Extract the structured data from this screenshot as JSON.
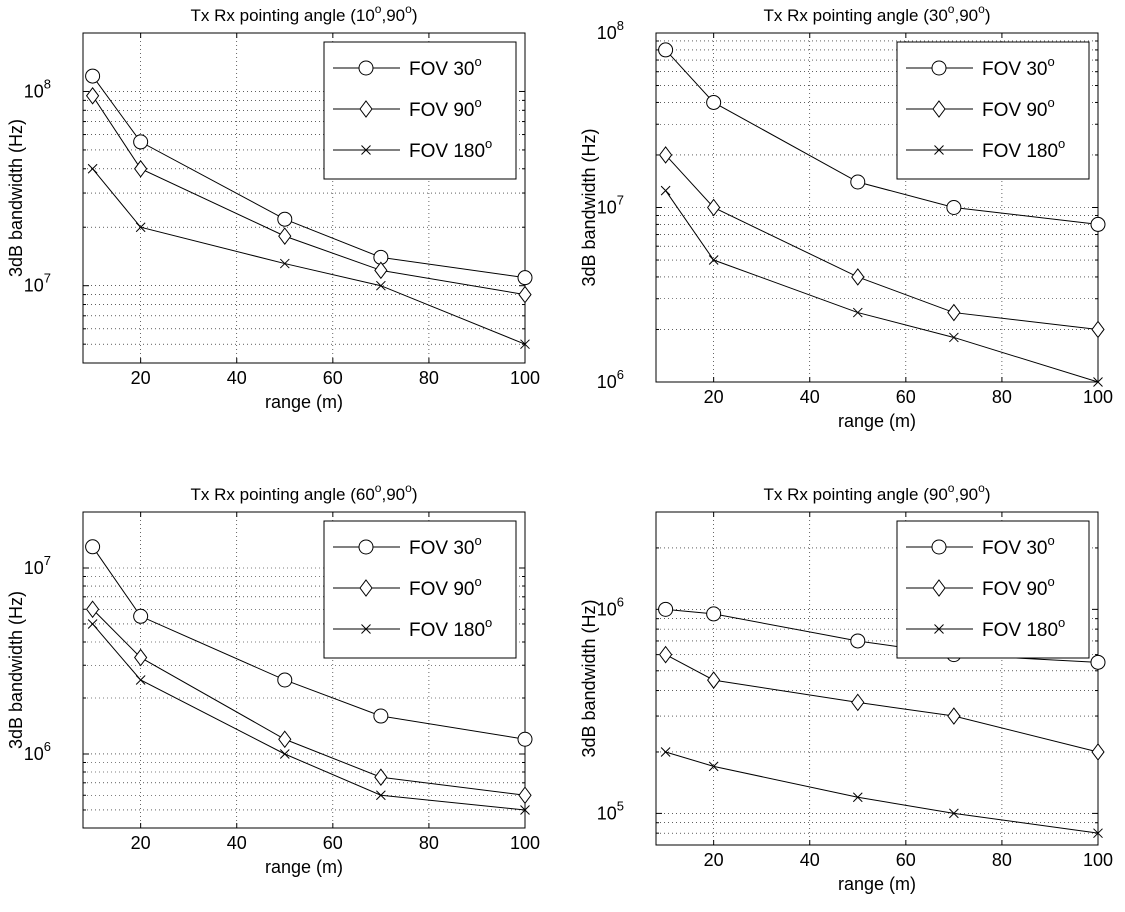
{
  "chart_data": [
    {
      "type": "line",
      "title_main": "Tx Rx pointing angle (10",
      "title_mid": ",90",
      "title_end": ")",
      "title_sup": "o",
      "xlabel": "range (m)",
      "ylabel": "3dB bandwidth (Hz)",
      "yscale": "log",
      "xlim": [
        8,
        100
      ],
      "ylim": [
        4000000,
        200000000
      ],
      "x_ticks": [
        20,
        40,
        60,
        80,
        100
      ],
      "y_ticks": [
        {
          "base": "10",
          "exp": "7",
          "value": 10000000
        },
        {
          "base": "10",
          "exp": "8",
          "value": 100000000
        }
      ],
      "grid": true,
      "legend_position": "top-right",
      "x": [
        10,
        20,
        50,
        70,
        100
      ],
      "series": [
        {
          "name": "FOV 30",
          "name_sup": "o",
          "marker": "circle",
          "values": [
            120000000,
            55000000,
            22000000,
            14000000,
            11000000
          ]
        },
        {
          "name": "FOV 90",
          "name_sup": "o",
          "marker": "diamond",
          "values": [
            95000000,
            40000000,
            18000000,
            12000000,
            9000000
          ]
        },
        {
          "name": "FOV 180",
          "name_sup": "o",
          "marker": "x",
          "values": [
            40000000,
            20000000,
            13000000,
            10000000,
            5000000
          ]
        }
      ]
    },
    {
      "type": "line",
      "title_main": "Tx Rx pointing angle (30",
      "title_mid": ",90",
      "title_end": ")",
      "title_sup": "o",
      "xlabel": "range (m)",
      "ylabel": "3dB bandwidth (Hz)",
      "yscale": "log",
      "xlim": [
        8,
        100
      ],
      "ylim": [
        1000000,
        100000000
      ],
      "x_ticks": [
        20,
        40,
        60,
        80,
        100
      ],
      "y_ticks": [
        {
          "base": "10",
          "exp": "6",
          "value": 1000000
        },
        {
          "base": "10",
          "exp": "7",
          "value": 10000000
        },
        {
          "base": "10",
          "exp": "8",
          "value": 100000000
        }
      ],
      "grid": true,
      "legend_position": "top-right",
      "x": [
        10,
        20,
        50,
        70,
        100
      ],
      "series": [
        {
          "name": "FOV 30",
          "name_sup": "o",
          "marker": "circle",
          "values": [
            80000000,
            40000000,
            14000000,
            10000000,
            8000000
          ]
        },
        {
          "name": "FOV 90",
          "name_sup": "o",
          "marker": "diamond",
          "values": [
            20000000,
            10000000,
            4000000,
            2500000,
            2000000
          ]
        },
        {
          "name": "FOV 180",
          "name_sup": "o",
          "marker": "x",
          "values": [
            12500000,
            5000000,
            2500000,
            1800000,
            1000000
          ]
        }
      ]
    },
    {
      "type": "line",
      "title_main": "Tx Rx pointing angle (60",
      "title_mid": ",90",
      "title_end": ")",
      "title_sup": "o",
      "xlabel": "range (m)",
      "ylabel": "3dB bandwidth (Hz)",
      "yscale": "log",
      "xlim": [
        8,
        100
      ],
      "ylim": [
        400000,
        20000000
      ],
      "x_ticks": [
        20,
        40,
        60,
        80,
        100
      ],
      "y_ticks": [
        {
          "base": "10",
          "exp": "6",
          "value": 1000000
        },
        {
          "base": "10",
          "exp": "7",
          "value": 10000000
        }
      ],
      "grid": true,
      "legend_position": "top-right",
      "x": [
        10,
        20,
        50,
        70,
        100
      ],
      "series": [
        {
          "name": "FOV 30",
          "name_sup": "o",
          "marker": "circle",
          "values": [
            13000000,
            5500000,
            2500000,
            1600000,
            1200000
          ]
        },
        {
          "name": "FOV 90",
          "name_sup": "o",
          "marker": "diamond",
          "values": [
            6000000,
            3300000,
            1200000,
            750000,
            600000
          ]
        },
        {
          "name": "FOV 180",
          "name_sup": "o",
          "marker": "x",
          "values": [
            5000000,
            2500000,
            1000000,
            600000,
            500000
          ]
        }
      ]
    },
    {
      "type": "line",
      "title_main": "Tx Rx pointing angle (90",
      "title_mid": ",90",
      "title_end": ")",
      "title_sup": "o",
      "xlabel": "range (m)",
      "ylabel": "3dB bandwidth (Hz)",
      "yscale": "log",
      "xlim": [
        8,
        100
      ],
      "ylim": [
        70000,
        3000000
      ],
      "x_ticks": [
        20,
        40,
        60,
        80,
        100
      ],
      "y_ticks": [
        {
          "base": "10",
          "exp": "5",
          "value": 100000
        },
        {
          "base": "10",
          "exp": "6",
          "value": 1000000
        }
      ],
      "grid": true,
      "legend_position": "top-right",
      "x": [
        10,
        20,
        50,
        70,
        100
      ],
      "series": [
        {
          "name": "FOV 30",
          "name_sup": "o",
          "marker": "circle",
          "values": [
            1000000,
            950000,
            700000,
            600000,
            550000
          ]
        },
        {
          "name": "FOV 90",
          "name_sup": "o",
          "marker": "diamond",
          "values": [
            600000,
            450000,
            350000,
            300000,
            200000
          ]
        },
        {
          "name": "FOV 180",
          "name_sup": "o",
          "marker": "x",
          "values": [
            200000,
            170000,
            120000,
            100000,
            80000
          ]
        }
      ]
    }
  ]
}
